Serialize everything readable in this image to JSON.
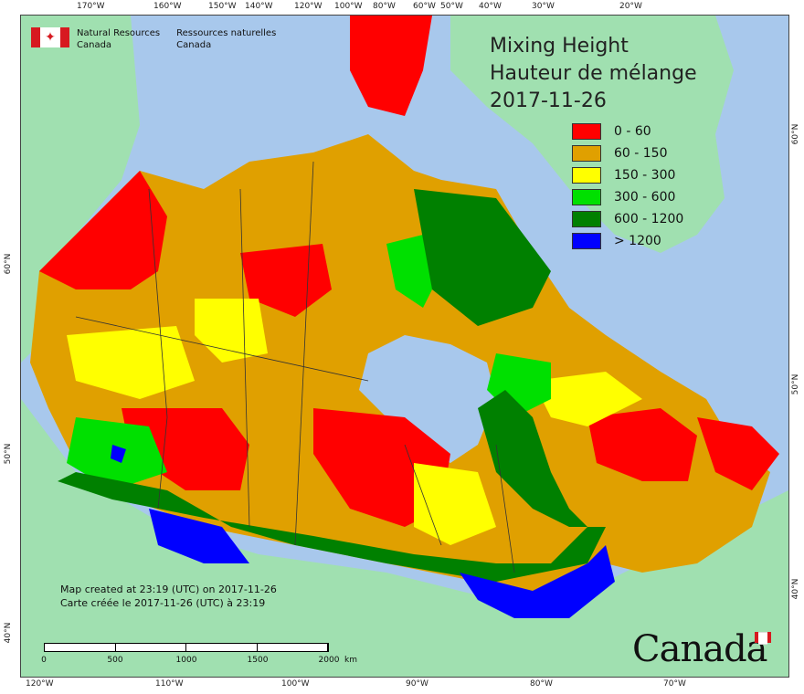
{
  "agency": {
    "name_en_1": "Natural Resources",
    "name_en_2": "Canada",
    "name_fr_1": "Ressources naturelles",
    "name_fr_2": "Canada",
    "flag_symbol": "✦"
  },
  "title": {
    "line1": "Mixing Height",
    "line2": "Hauteur de mélange",
    "date": "2017-11-26"
  },
  "legend": [
    {
      "label": "0 - 60",
      "color": "#ff0000"
    },
    {
      "label": "60 - 150",
      "color": "#e0a000"
    },
    {
      "label": "150 - 300",
      "color": "#ffff00"
    },
    {
      "label": "300 - 600",
      "color": "#00e000"
    },
    {
      "label": "600 - 1200",
      "color": "#008000"
    },
    {
      "label": "> 1200",
      "color": "#0000ff"
    }
  ],
  "credit": {
    "line1": "Map created at 23:19 (UTC) on 2017-11-26",
    "line2": "Carte créée le 2017-11-26 (UTC) à 23:19"
  },
  "scale": {
    "labels": [
      "0",
      "500",
      "1000",
      "1500",
      "2000"
    ],
    "unit": "km"
  },
  "graticule": {
    "top": [
      "170°W",
      "160°W",
      "150°W",
      "140°W",
      "120°W",
      "100°W",
      "80°W",
      "60°W",
      "50°W",
      "40°W",
      "30°W",
      "20°W"
    ],
    "bottom": [
      "120°W",
      "110°W",
      "100°W",
      "90°W",
      "80°W",
      "70°W"
    ],
    "left": [
      "60°N",
      "50°N",
      "40°N"
    ],
    "right": [
      "60°N",
      "50°N",
      "40°N"
    ]
  },
  "wordmark": "Canada",
  "colors": {
    "ocean": "#a8c8ec",
    "land": "#a0e0b0",
    "border": "#333333"
  }
}
